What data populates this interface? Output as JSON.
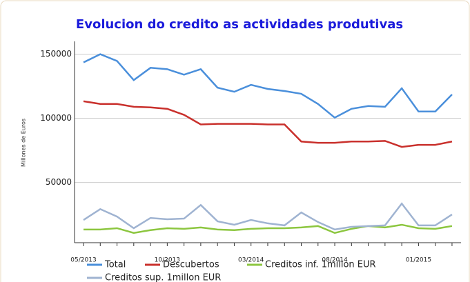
{
  "chart_data": {
    "type": "line",
    "title": "Evolucion do credito as actividades produtivas",
    "y_label": "Millones de Euros",
    "categories": [
      "05/2013",
      null,
      null,
      null,
      null,
      "10/2013",
      null,
      null,
      null,
      null,
      "03/2014",
      null,
      null,
      null,
      null,
      "08/2014",
      null,
      null,
      null,
      null,
      "01/2015",
      null,
      null
    ],
    "series": [
      {
        "name": "Total",
        "color": "#4a8fdb",
        "values": [
          143600,
          150000,
          144700,
          129800,
          139400,
          138300,
          134000,
          138300,
          123900,
          120700,
          126100,
          122900,
          121300,
          119100,
          111200,
          100500,
          107400,
          109600,
          109000,
          123400,
          105300,
          105300,
          118600
        ]
      },
      {
        "name": "Descubertos",
        "color": "#c9302c",
        "values": [
          113300,
          111200,
          111200,
          109000,
          108500,
          107400,
          102700,
          95200,
          95700,
          95700,
          95700,
          95200,
          95200,
          81900,
          80900,
          80900,
          81900,
          81900,
          82400,
          77700,
          79300,
          79300,
          81900
        ]
      },
      {
        "name": "Creditos inf. 1millon EUR",
        "color": "#8cc63f",
        "values": [
          13300,
          13300,
          14300,
          10600,
          12800,
          14300,
          13800,
          14900,
          13300,
          12800,
          13800,
          14300,
          14300,
          14900,
          16000,
          10600,
          13800,
          16000,
          14900,
          17000,
          14300,
          13800,
          16000
        ]
      },
      {
        "name": "Creditos sup. 1millon EUR",
        "color": "#9fb3d1",
        "values": [
          20700,
          29200,
          23400,
          14300,
          22300,
          21300,
          21800,
          32400,
          19700,
          17000,
          20700,
          18100,
          16500,
          26600,
          19100,
          13300,
          15400,
          16000,
          16500,
          33500,
          16500,
          16500,
          25000
        ]
      }
    ],
    "ylim": [
      3000,
      160000
    ],
    "yticks": [
      50000,
      100000,
      150000
    ],
    "grid": true
  }
}
